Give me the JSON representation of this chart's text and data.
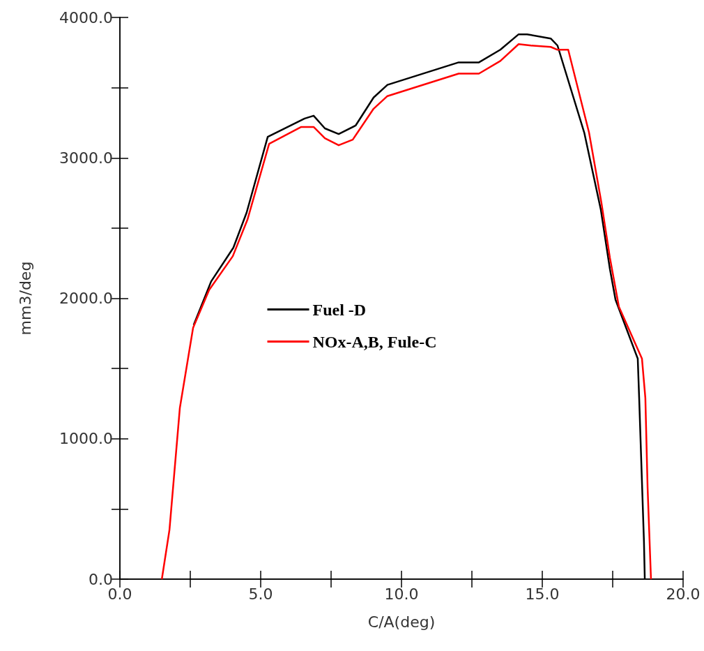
{
  "chart_data": {
    "type": "line",
    "xlabel": "C/A(deg)",
    "ylabel": "mm3/deg",
    "xlim": [
      0,
      20
    ],
    "ylim": [
      0,
      4000
    ],
    "xticks": [
      {
        "value": 0,
        "label": "0.0"
      },
      {
        "value": 2.5,
        "label": null
      },
      {
        "value": 5,
        "label": "5.0"
      },
      {
        "value": 7.5,
        "label": null
      },
      {
        "value": 10,
        "label": "10.0"
      },
      {
        "value": 12.5,
        "label": null
      },
      {
        "value": 15,
        "label": "15.0"
      },
      {
        "value": 17.5,
        "label": null
      },
      {
        "value": 20,
        "label": "20.0"
      }
    ],
    "yticks": [
      {
        "value": 0,
        "label": "0.0"
      },
      {
        "value": 500,
        "label": null
      },
      {
        "value": 1000,
        "label": "1000.0"
      },
      {
        "value": 1500,
        "label": null
      },
      {
        "value": 2000,
        "label": "2000.0"
      },
      {
        "value": 2500,
        "label": null
      },
      {
        "value": 3000,
        "label": "3000.0"
      },
      {
        "value": 3500,
        "label": null
      },
      {
        "value": 4000,
        "label": "4000.0"
      }
    ],
    "grid": false,
    "legend": "center",
    "series": [
      {
        "name": "Fuel -D",
        "color": "#000000",
        "x": [
          2.62,
          3.24,
          4.03,
          4.5,
          5.25,
          6.56,
          6.88,
          7.28,
          7.77,
          8.37,
          9.01,
          9.5,
          12.03,
          12.75,
          13.51,
          14.16,
          14.46,
          15.3,
          15.54,
          16.49,
          17.08,
          17.4,
          17.6,
          18.39,
          18.44,
          18.61,
          18.64
        ],
        "values": [
          1810,
          2120,
          2360,
          2610,
          3150,
          3280,
          3300,
          3210,
          3170,
          3230,
          3430,
          3520,
          3680,
          3680,
          3770,
          3880,
          3880,
          3850,
          3800,
          3180,
          2630,
          2210,
          1990,
          1570,
          1290,
          270,
          0
        ]
      },
      {
        "name": "NOx-A,B, Fule-C",
        "color": "#ff0000",
        "x": [
          1.49,
          1.76,
          2.13,
          2.6,
          3.17,
          4.01,
          4.53,
          5.3,
          6.44,
          6.88,
          7.28,
          7.77,
          8.27,
          9.01,
          9.5,
          12.03,
          12.75,
          13.51,
          14.16,
          14.6,
          15.3,
          15.54,
          15.92,
          16.66,
          17.1,
          17.4,
          17.72,
          18.54,
          18.66,
          18.74,
          18.86
        ],
        "values": [
          0,
          350,
          1220,
          1790,
          2060,
          2300,
          2560,
          3100,
          3220,
          3220,
          3140,
          3090,
          3130,
          3350,
          3440,
          3600,
          3600,
          3690,
          3810,
          3800,
          3790,
          3770,
          3770,
          3180,
          2680,
          2290,
          1940,
          1570,
          1290,
          650,
          0
        ]
      }
    ]
  }
}
